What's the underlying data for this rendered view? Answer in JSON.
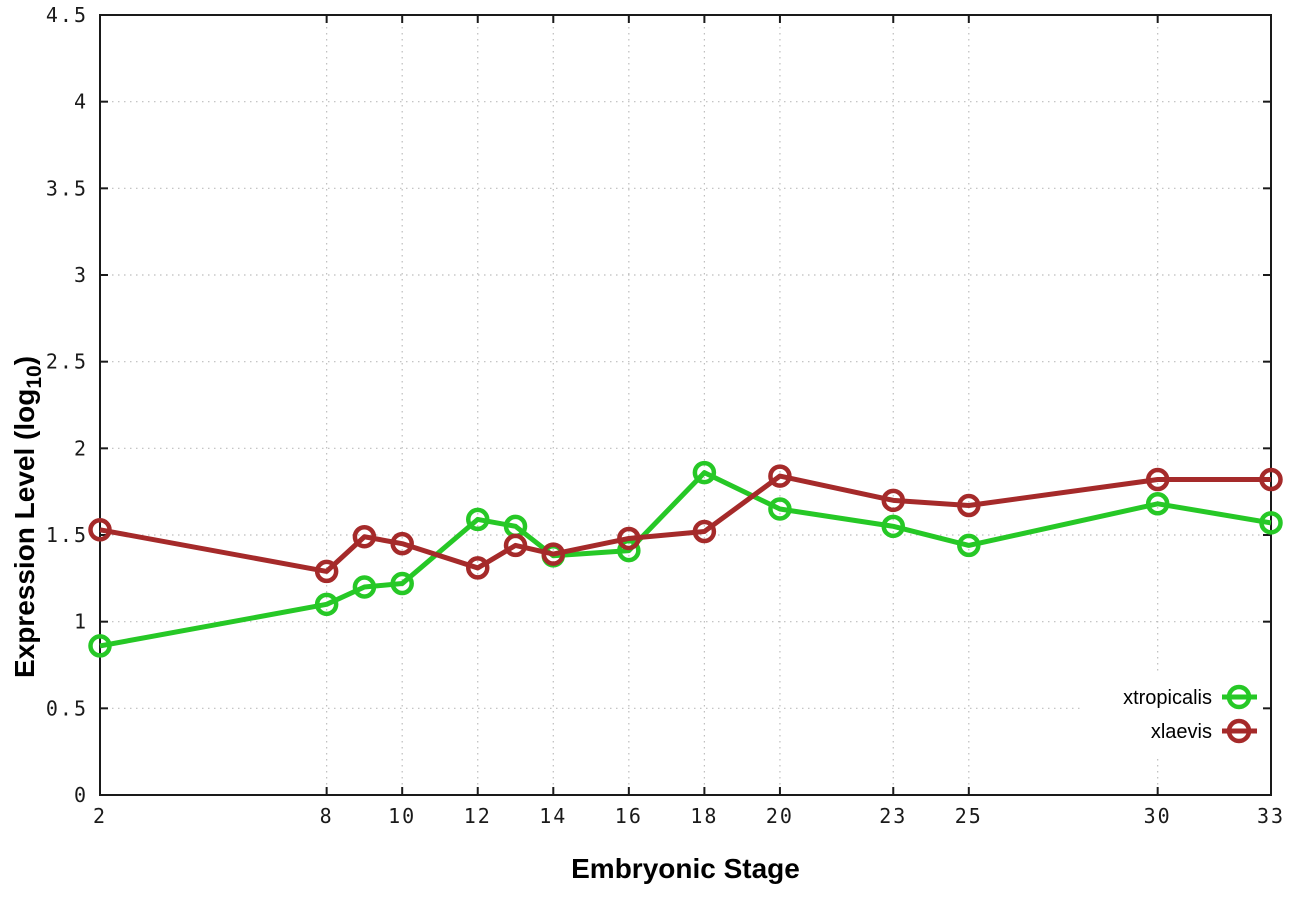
{
  "figure": {
    "background": "#ffffff",
    "border_color": "#1a1a1a",
    "grid_color": "#bdbdbd",
    "text_color": "#1a1a1a"
  },
  "chart_data": {
    "type": "line",
    "title": "",
    "xlabel": "Embryonic Stage",
    "ylabel": "Expression Level (log10)",
    "ylabel_parts": {
      "main": "Expression Level (log",
      "sub": "10",
      "end": ")"
    },
    "xlim": [
      2,
      33
    ],
    "ylim": [
      0,
      4.5
    ],
    "grid": true,
    "legend_position": "bottom-right",
    "x": [
      2,
      8,
      9,
      10,
      12,
      13,
      14,
      16,
      18,
      20,
      23,
      25,
      30,
      33
    ],
    "xticks": [
      2,
      8,
      10,
      12,
      14,
      16,
      18,
      20,
      23,
      25,
      30,
      33
    ],
    "xtick_labels": [
      "2",
      "8",
      "10",
      "12",
      "14",
      "16",
      "18",
      "20",
      "23",
      "25",
      "30",
      "33"
    ],
    "yticks": [
      0,
      0.5,
      1,
      1.5,
      2,
      2.5,
      3,
      3.5,
      4,
      4.5
    ],
    "ytick_labels": [
      "0",
      "0.5",
      "1",
      "1.5",
      "2",
      "2.5",
      "3",
      "3.5",
      "4",
      "4.5"
    ],
    "series": [
      {
        "name": "xtropicalis",
        "label": "xtropicalis",
        "color": "#26c826",
        "values": [
          0.86,
          1.1,
          1.2,
          1.22,
          1.59,
          1.55,
          1.38,
          1.41,
          1.86,
          1.65,
          1.55,
          1.44,
          1.68,
          1.57
        ]
      },
      {
        "name": "xlaevis",
        "label": "xlaevis",
        "color": "#a52a2a",
        "values": [
          1.53,
          1.29,
          1.49,
          1.45,
          1.31,
          1.44,
          1.39,
          1.48,
          1.52,
          1.84,
          1.7,
          1.67,
          1.82,
          1.82
        ]
      }
    ]
  }
}
